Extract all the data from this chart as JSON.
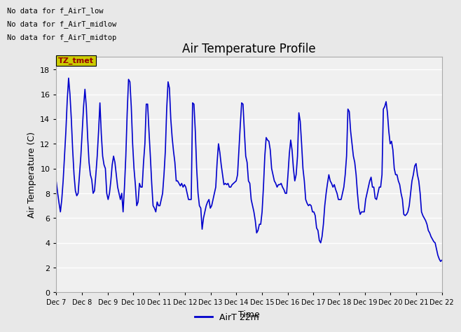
{
  "title": "Air Temperature Profile",
  "xlabel": "Time",
  "ylabel": "Air Temperature (C)",
  "ylim": [
    0,
    19
  ],
  "yticks": [
    0,
    2,
    4,
    6,
    8,
    10,
    12,
    14,
    16,
    18
  ],
  "line_color": "#0000CC",
  "line_width": 1.2,
  "background_color": "#E8E8E8",
  "plot_bg_color": "#F0F0F0",
  "legend_label": "AirT 22m",
  "no_data_texts": [
    "No data for f_AirT_low",
    "No data for f_AirT_midlow",
    "No data for f_AirT_midtop"
  ],
  "legend_box_color": "#CCCC00",
  "legend_text_color": "#990000",
  "legend_box_label": "TZ_tmet",
  "x_labels": [
    "Dec 7",
    "Dec 8",
    "Dec 9",
    "Dec 10",
    "Dec 11",
    "Dec 12",
    "Dec 13",
    "Dec 14",
    "Dec 15",
    "Dec 16",
    "Dec 17",
    "Dec 18",
    "Dec 19",
    "Dec 20",
    "Dec 21",
    "Dec 22"
  ],
  "temperature_data": [
    8.9,
    8.0,
    7.2,
    6.5,
    7.5,
    9.0,
    11.0,
    13.0,
    15.5,
    17.3,
    16.0,
    14.0,
    11.5,
    9.5,
    8.2,
    7.8,
    8.0,
    9.5,
    11.0,
    13.0,
    15.0,
    16.4,
    15.0,
    12.5,
    10.5,
    9.5,
    9.1,
    8.0,
    8.2,
    9.5,
    11.0,
    13.0,
    15.3,
    12.8,
    11.0,
    10.3,
    10.0,
    8.0,
    7.5,
    8.0,
    9.0,
    10.3,
    11.0,
    10.5,
    9.5,
    8.5,
    8.0,
    7.5,
    8.0,
    6.5,
    8.5,
    11.0,
    14.5,
    17.2,
    17.0,
    15.0,
    12.0,
    10.0,
    8.7,
    7.0,
    7.3,
    8.8,
    8.5,
    8.5,
    10.5,
    12.0,
    15.2,
    15.2,
    13.0,
    11.0,
    8.8,
    7.0,
    6.8,
    6.5,
    7.3,
    7.0,
    7.0,
    7.5,
    8.0,
    9.5,
    11.4,
    14.8,
    17.0,
    16.5,
    14.0,
    12.5,
    11.4,
    10.5,
    9.0,
    9.0,
    8.8,
    8.6,
    8.8,
    8.5,
    8.7,
    8.5,
    8.0,
    7.5,
    7.5,
    7.5,
    15.3,
    15.2,
    13.0,
    10.0,
    8.0,
    7.0,
    6.8,
    5.1,
    6.0,
    6.5,
    7.0,
    7.3,
    7.5,
    6.8,
    7.0,
    7.5,
    8.0,
    8.5,
    10.5,
    12.0,
    11.3,
    10.3,
    9.5,
    8.7,
    8.8,
    8.7,
    8.8,
    8.5,
    8.5,
    8.7,
    8.8,
    8.9,
    9.0,
    9.5,
    11.5,
    13.5,
    15.3,
    15.2,
    13.0,
    11.0,
    10.5,
    9.0,
    8.8,
    7.5,
    7.0,
    6.5,
    5.8,
    4.8,
    5.0,
    5.5,
    5.5,
    6.5,
    8.5,
    11.0,
    12.5,
    12.3,
    12.2,
    11.5,
    10.0,
    9.5,
    9.0,
    8.8,
    8.5,
    8.7,
    8.7,
    8.8,
    8.5,
    8.3,
    8.0,
    8.0,
    9.5,
    11.2,
    12.3,
    11.5,
    10.0,
    9.0,
    9.5,
    11.0,
    14.5,
    13.8,
    12.0,
    10.0,
    9.0,
    7.5,
    7.2,
    7.0,
    7.1,
    7.0,
    6.5,
    6.5,
    6.2,
    5.2,
    5.0,
    4.2,
    4.0,
    4.5,
    5.5,
    7.0,
    8.0,
    8.8,
    9.5,
    9.0,
    8.8,
    8.5,
    8.7,
    8.3,
    8.0,
    7.5,
    7.5,
    7.5,
    8.0,
    8.5,
    9.5,
    11.0,
    14.8,
    14.6,
    13.0,
    12.0,
    11.0,
    10.5,
    9.5,
    8.0,
    6.8,
    6.3,
    6.5,
    6.5,
    6.5,
    7.5,
    8.0,
    8.5,
    9.0,
    9.3,
    8.5,
    8.5,
    7.6,
    7.5,
    8.0,
    8.5,
    8.5,
    9.5,
    14.8,
    15.0,
    15.4,
    14.5,
    13.0,
    12.0,
    12.2,
    11.5,
    10.0,
    9.5,
    9.5,
    9.0,
    8.7,
    8.0,
    7.5,
    6.3,
    6.2,
    6.3,
    6.5,
    7.0,
    8.0,
    9.0,
    9.5,
    10.2,
    10.4,
    9.5,
    9.0,
    8.0,
    6.5,
    6.2,
    6.0,
    5.8,
    5.5,
    5.0,
    4.8,
    4.5,
    4.3,
    4.1,
    4.0,
    3.5,
    3.0,
    2.7,
    2.5,
    2.6
  ]
}
